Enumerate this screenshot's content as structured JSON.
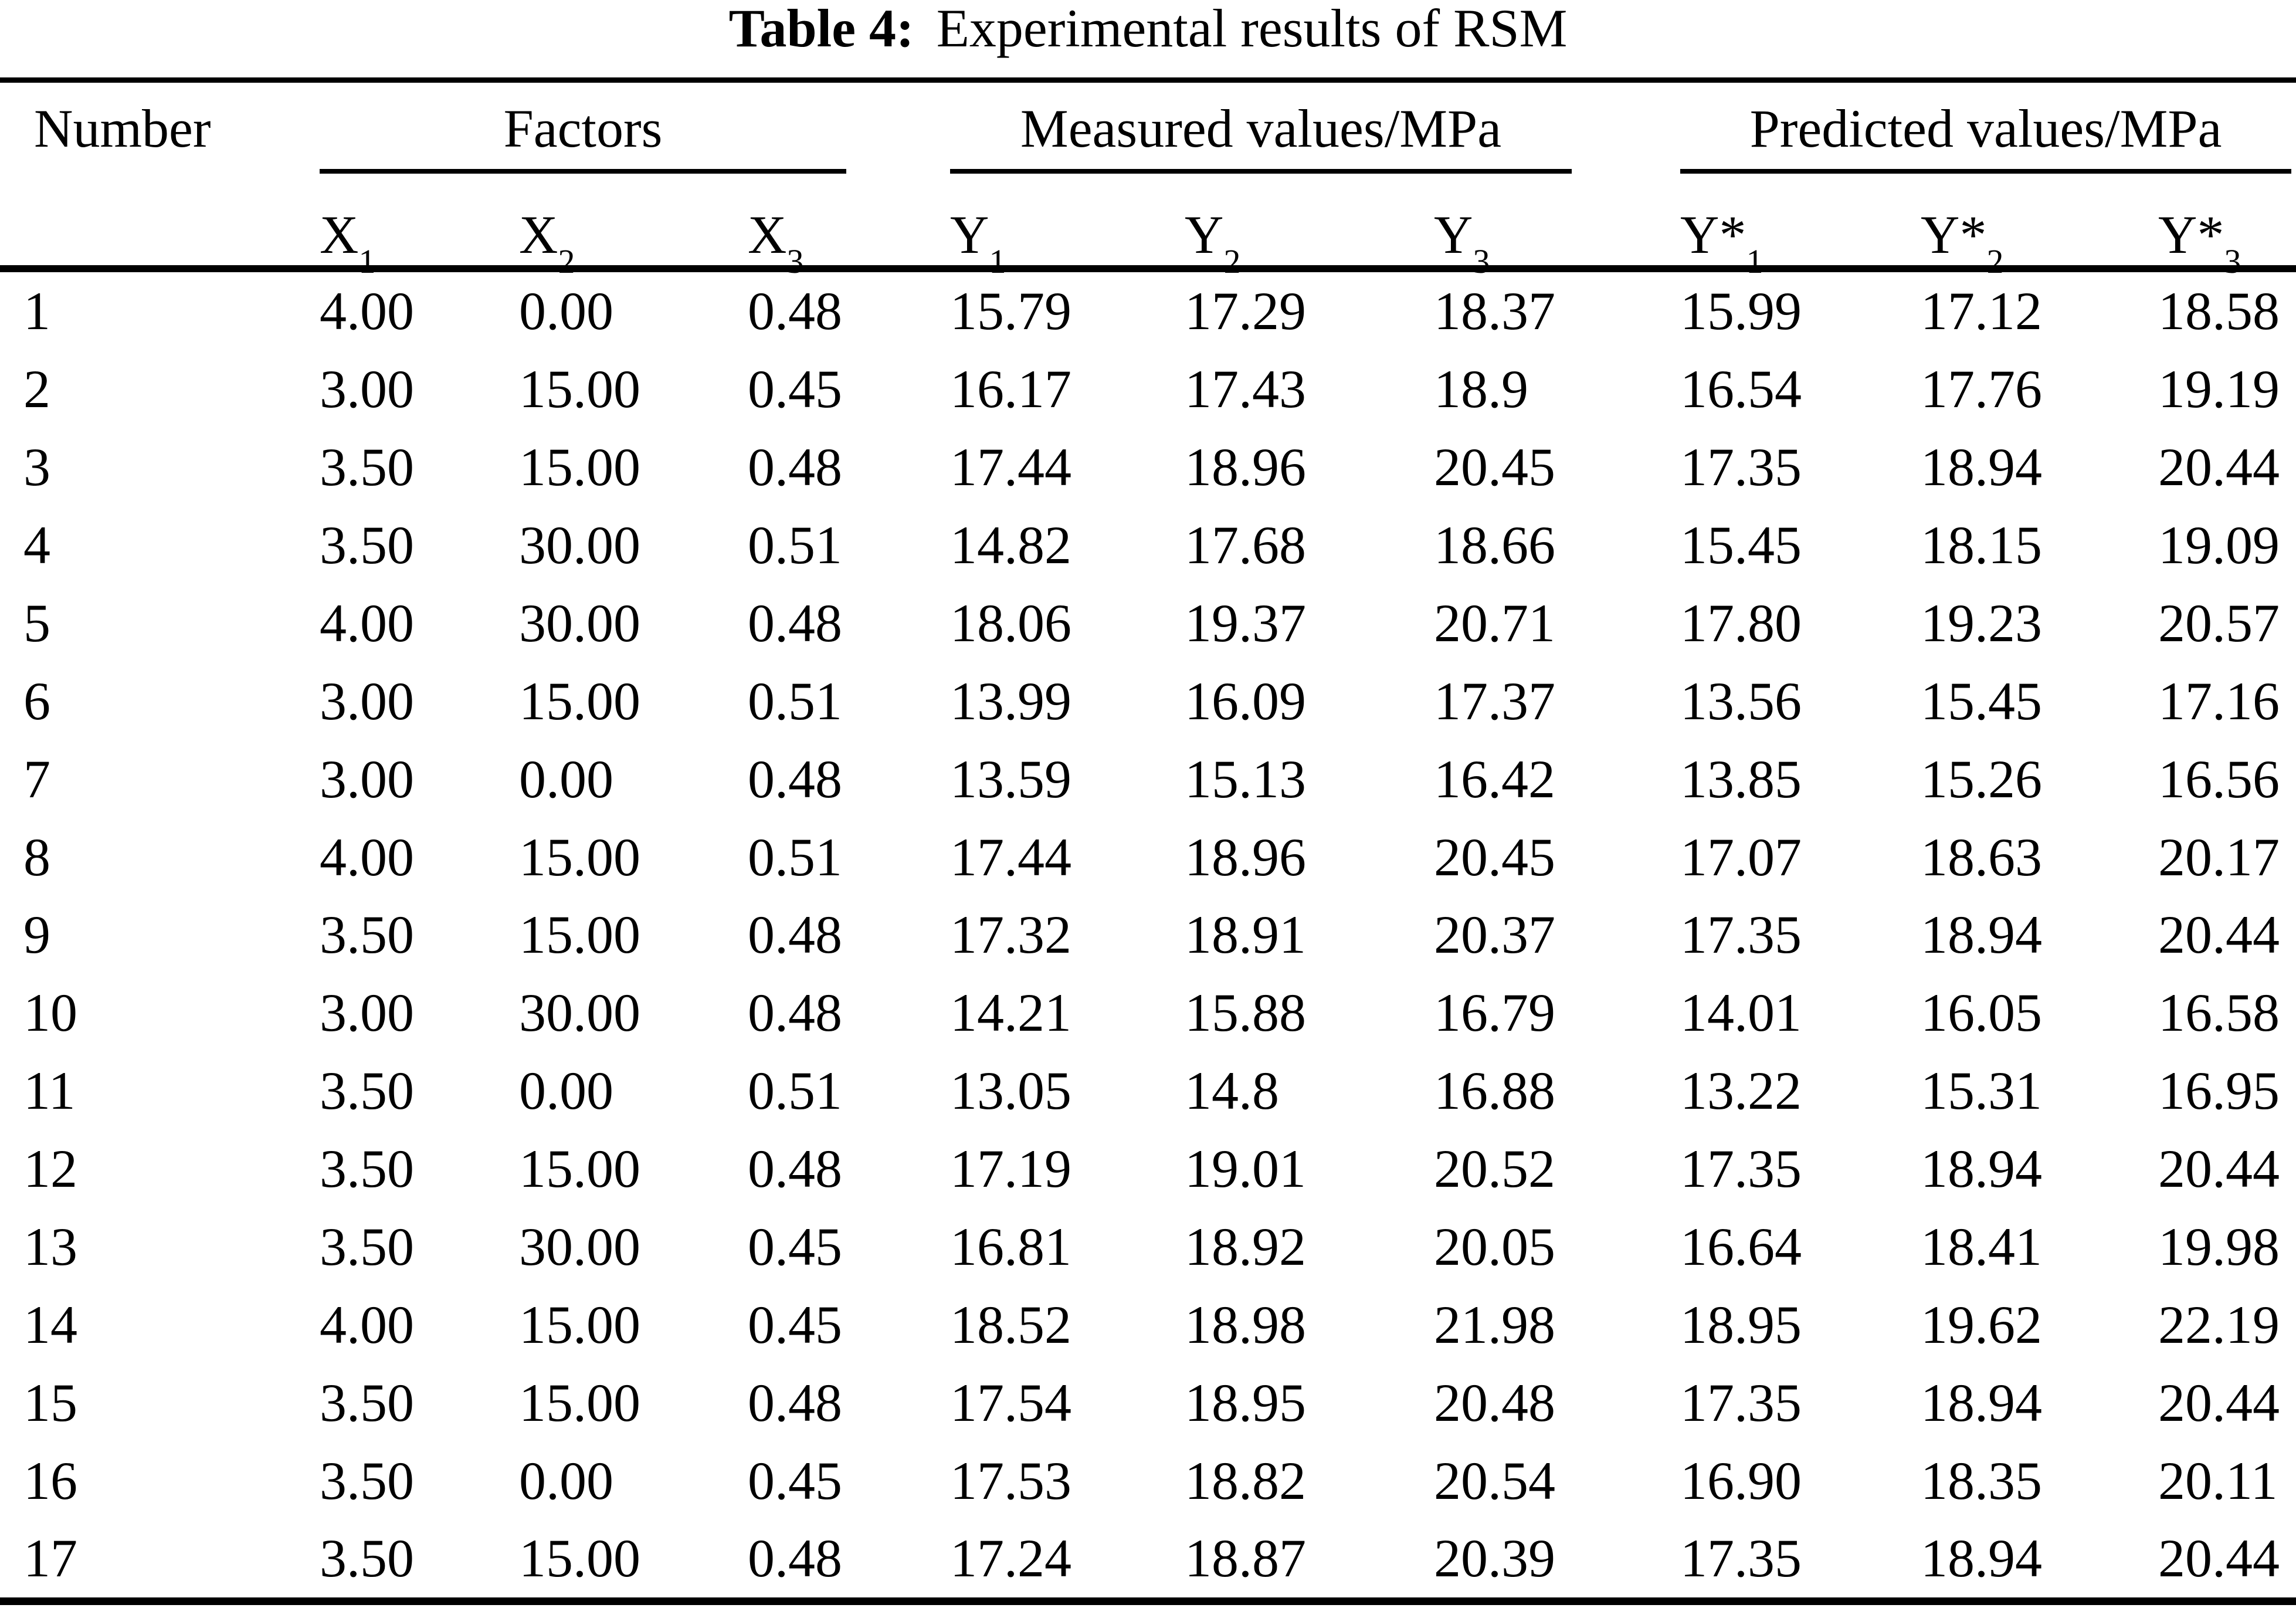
{
  "title": {
    "label": "Table 4:",
    "text": "Experimental results of RSM"
  },
  "colors": {
    "text": "#000000",
    "rules": "#000000",
    "background": "#ffffff"
  },
  "table": {
    "col_groups": [
      {
        "name": "Number"
      },
      {
        "name": "Factors"
      },
      {
        "name": "Measured values/MPa"
      },
      {
        "name": "Predicted values/MPa"
      }
    ],
    "sub_headers": [
      {
        "base": "X",
        "sub": "1"
      },
      {
        "base": "X",
        "sub": "2"
      },
      {
        "base": "X",
        "sub": "3"
      },
      {
        "base": "Y",
        "sub": "1"
      },
      {
        "base": "Y",
        "sub": "2"
      },
      {
        "base": "Y",
        "sub": "3"
      },
      {
        "base": "Y*",
        "sub": "1"
      },
      {
        "base": "Y*",
        "sub": "2"
      },
      {
        "base": "Y*",
        "sub": "3"
      }
    ],
    "rows": [
      [
        "1",
        "4.00",
        "0.00",
        "0.48",
        "15.79",
        "17.29",
        "18.37",
        "15.99",
        "17.12",
        "18.58"
      ],
      [
        "2",
        "3.00",
        "15.00",
        "0.45",
        "16.17",
        "17.43",
        "18.9",
        "16.54",
        "17.76",
        "19.19"
      ],
      [
        "3",
        "3.50",
        "15.00",
        "0.48",
        "17.44",
        "18.96",
        "20.45",
        "17.35",
        "18.94",
        "20.44"
      ],
      [
        "4",
        "3.50",
        "30.00",
        "0.51",
        "14.82",
        "17.68",
        "18.66",
        "15.45",
        "18.15",
        "19.09"
      ],
      [
        "5",
        "4.00",
        "30.00",
        "0.48",
        "18.06",
        "19.37",
        "20.71",
        "17.80",
        "19.23",
        "20.57"
      ],
      [
        "6",
        "3.00",
        "15.00",
        "0.51",
        "13.99",
        "16.09",
        "17.37",
        "13.56",
        "15.45",
        "17.16"
      ],
      [
        "7",
        "3.00",
        "0.00",
        "0.48",
        "13.59",
        "15.13",
        "16.42",
        "13.85",
        "15.26",
        "16.56"
      ],
      [
        "8",
        "4.00",
        "15.00",
        "0.51",
        "17.44",
        "18.96",
        "20.45",
        "17.07",
        "18.63",
        "20.17"
      ],
      [
        "9",
        "3.50",
        "15.00",
        "0.48",
        "17.32",
        "18.91",
        "20.37",
        "17.35",
        "18.94",
        "20.44"
      ],
      [
        "10",
        "3.00",
        "30.00",
        "0.48",
        "14.21",
        "15.88",
        "16.79",
        "14.01",
        "16.05",
        "16.58"
      ],
      [
        "11",
        "3.50",
        "0.00",
        "0.51",
        "13.05",
        "14.8",
        "16.88",
        "13.22",
        "15.31",
        "16.95"
      ],
      [
        "12",
        "3.50",
        "15.00",
        "0.48",
        "17.19",
        "19.01",
        "20.52",
        "17.35",
        "18.94",
        "20.44"
      ],
      [
        "13",
        "3.50",
        "30.00",
        "0.45",
        "16.81",
        "18.92",
        "20.05",
        "16.64",
        "18.41",
        "19.98"
      ],
      [
        "14",
        "4.00",
        "15.00",
        "0.45",
        "18.52",
        "18.98",
        "21.98",
        "18.95",
        "19.62",
        "22.19"
      ],
      [
        "15",
        "3.50",
        "15.00",
        "0.48",
        "17.54",
        "18.95",
        "20.48",
        "17.35",
        "18.94",
        "20.44"
      ],
      [
        "16",
        "3.50",
        "0.00",
        "0.45",
        "17.53",
        "18.82",
        "20.54",
        "16.90",
        "18.35",
        "20.11"
      ],
      [
        "17",
        "3.50",
        "15.00",
        "0.48",
        "17.24",
        "18.87",
        "20.39",
        "17.35",
        "18.94",
        "20.44"
      ]
    ]
  }
}
